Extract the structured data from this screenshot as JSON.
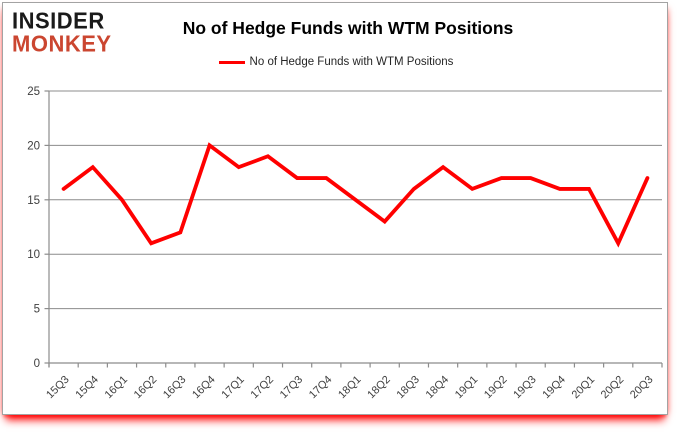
{
  "logo": {
    "line1": "INSIDER",
    "line2": "MONKEY"
  },
  "header": {
    "title": "No of Hedge Funds with WTM Positions"
  },
  "legend": {
    "label": "No of Hedge Funds with WTM Positions"
  },
  "colors": {
    "line": "#ff0000",
    "logo_accent": "#cb4630",
    "logo_text": "#1a1a1a",
    "grid": "#8c8c8c",
    "axis": "#8c8c8c",
    "axis_text": "#3f3f3f",
    "title_text": "#000000"
  },
  "chart_data": {
    "type": "line",
    "title": "No of Hedge Funds with WTM Positions",
    "categories": [
      "15Q3",
      "15Q4",
      "16Q1",
      "16Q2",
      "16Q3",
      "16Q4",
      "17Q1",
      "17Q2",
      "17Q3",
      "17Q4",
      "18Q1",
      "18Q2",
      "18Q3",
      "18Q4",
      "19Q1",
      "19Q2",
      "19Q3",
      "19Q4",
      "20Q1",
      "20Q2",
      "20Q3"
    ],
    "series": [
      {
        "name": "No of Hedge Funds with WTM Positions",
        "color": "#ff0000",
        "values": [
          16,
          18,
          15,
          11,
          12,
          20,
          18,
          19,
          17,
          17,
          15,
          13,
          16,
          18,
          16,
          17,
          17,
          16,
          16,
          11,
          17
        ]
      }
    ],
    "xlabel": "",
    "ylabel": "",
    "ylim": [
      0,
      25
    ],
    "ytick_interval": 5,
    "yticks": [
      0,
      5,
      10,
      15,
      20,
      25
    ],
    "grid": "horizontal",
    "legend_position": "top-center"
  }
}
